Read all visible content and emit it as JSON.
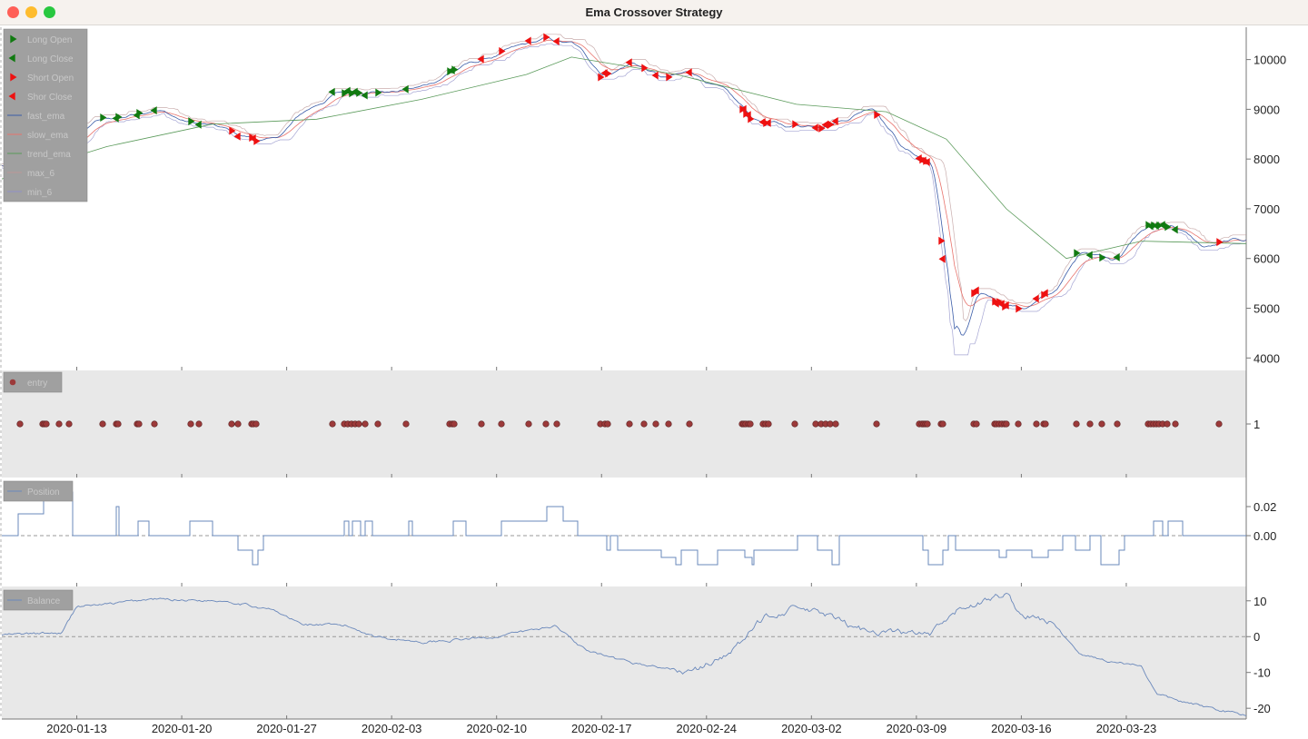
{
  "window": {
    "title": "Ema Crossover Strategy"
  },
  "colors": {
    "fast": "#3a5ca8",
    "slow": "#e8736c",
    "trend": "#5a9a5a",
    "long": "#117a11",
    "short": "#ee1111",
    "entry": "#9c3a3a",
    "line": "#6a88bb",
    "panel_bg": "#e8e8e8",
    "legend_bg": "#a0a0a0"
  },
  "chart_data": [
    {
      "type": "line",
      "title": "",
      "legend": {
        "placement": "top-left",
        "entries": [
          "Long Open",
          "Long Close",
          "Short Open",
          "Shor Close",
          "fast_ema",
          "slow_ema",
          "trend_ema",
          "max_6",
          "min_6"
        ]
      },
      "ylim": [
        3750,
        10650
      ],
      "y_ticks": [
        {
          "value": 4000,
          "label": "4000"
        },
        {
          "value": 5000,
          "label": "5000"
        },
        {
          "value": 6000,
          "label": "6000"
        },
        {
          "value": 7000,
          "label": "7000"
        },
        {
          "value": 8000,
          "label": "8000"
        },
        {
          "value": 9000,
          "label": "9000"
        },
        {
          "value": 10000,
          "label": "10000"
        }
      ],
      "x_ticks": [
        "2020-01-13",
        "2020-01-20",
        "2020-01-27",
        "2020-02-03",
        "2020-02-10",
        "2020-02-17",
        "2020-02-24",
        "2020-03-02",
        "2020-03-09",
        "2020-03-16",
        "2020-03-23"
      ],
      "x_range": [
        "2020-01-08",
        "2020-03-31"
      ],
      "price_anchors": {
        "x": [
          "2020-01-08",
          "2020-01-10",
          "2020-01-12",
          "2020-01-14",
          "2020-01-16",
          "2020-01-18",
          "2020-01-20",
          "2020-01-22",
          "2020-01-24",
          "2020-01-26",
          "2020-01-28",
          "2020-01-30",
          "2020-02-01",
          "2020-02-03",
          "2020-02-05",
          "2020-02-07",
          "2020-02-09",
          "2020-02-11",
          "2020-02-13",
          "2020-02-15",
          "2020-02-17",
          "2020-02-19",
          "2020-02-21",
          "2020-02-23",
          "2020-02-25",
          "2020-02-27",
          "2020-02-29",
          "2020-03-02",
          "2020-03-04",
          "2020-03-06",
          "2020-03-08",
          "2020-03-10",
          "2020-03-11",
          "2020-03-12",
          "2020-03-13",
          "2020-03-14",
          "2020-03-16",
          "2020-03-18",
          "2020-03-20",
          "2020-03-22",
          "2020-03-24",
          "2020-03-26",
          "2020-03-28",
          "2020-03-31"
        ],
        "y": [
          7850,
          7900,
          8150,
          8750,
          8850,
          9050,
          8750,
          8650,
          8450,
          8350,
          8950,
          9300,
          9400,
          9350,
          9450,
          9800,
          10000,
          10200,
          10400,
          10300,
          9700,
          9950,
          9600,
          9750,
          9350,
          8800,
          8650,
          8700,
          8800,
          9100,
          8200,
          7900,
          5500,
          4300,
          5300,
          5200,
          5000,
          5300,
          6200,
          6000,
          6600,
          6700,
          6200,
          6400
        ]
      },
      "trend_anchors": {
        "x": [
          "2020-01-08",
          "2020-01-15",
          "2020-01-22",
          "2020-01-29",
          "2020-02-05",
          "2020-02-12",
          "2020-02-15",
          "2020-02-22",
          "2020-03-01",
          "2020-03-07",
          "2020-03-11",
          "2020-03-15",
          "2020-03-19",
          "2020-03-24",
          "2020-03-31"
        ],
        "y": [
          7600,
          8250,
          8700,
          8800,
          9200,
          9700,
          10050,
          9700,
          9100,
          8950,
          8400,
          7000,
          6000,
          6350,
          6300
        ]
      }
    },
    {
      "type": "scatter",
      "legend": {
        "entries": [
          "entry"
        ]
      },
      "y_ticks": [
        {
          "value": 1,
          "label": "1"
        }
      ],
      "ylim": [
        0,
        2
      ],
      "marker_px_x": [
        22,
        47,
        49,
        51,
        65,
        76,
        113,
        128,
        130,
        151,
        153,
        170,
        210,
        219,
        255,
        262,
        277,
        279,
        282,
        366,
        379,
        383,
        387,
        391,
        395,
        402,
        416,
        447,
        495,
        498,
        500,
        530,
        552,
        582,
        601,
        613,
        661,
        666,
        669,
        693,
        709,
        722,
        736,
        759,
        817,
        819,
        821,
        824,
        826,
        840,
        843,
        846,
        875,
        898,
        904,
        909,
        914,
        920,
        965,
        1012,
        1015,
        1017,
        1019,
        1021,
        1036,
        1038,
        1072,
        1075,
        1095,
        1097,
        1100,
        1103,
        1106,
        1108,
        1121,
        1141,
        1149,
        1151,
        1185,
        1200,
        1213,
        1230,
        1264,
        1267,
        1270,
        1273,
        1276,
        1280,
        1285,
        1294,
        1342
      ]
    },
    {
      "type": "line",
      "legend": {
        "entries": [
          "Position"
        ]
      },
      "ylim": [
        -0.035,
        0.04
      ],
      "y_ticks": [
        {
          "value": 0.0,
          "label": "0.00"
        },
        {
          "value": 0.02,
          "label": "0.02"
        }
      ]
    },
    {
      "type": "line",
      "legend": {
        "entries": [
          "Balance"
        ]
      },
      "ylim": [
        -23,
        14
      ],
      "y_ticks": [
        {
          "value": -20,
          "label": "-20"
        },
        {
          "value": -10,
          "label": "-10"
        },
        {
          "value": 0,
          "label": "0"
        },
        {
          "value": 10,
          "label": "10"
        }
      ],
      "anchors": {
        "x": [
          "2020-01-08",
          "2020-01-12",
          "2020-01-13",
          "2020-01-15",
          "2020-01-18",
          "2020-01-23",
          "2020-01-26",
          "2020-01-28",
          "2020-01-31",
          "2020-02-02",
          "2020-02-05",
          "2020-02-07",
          "2020-02-10",
          "2020-02-14",
          "2020-02-16",
          "2020-02-18",
          "2020-02-20",
          "2020-02-23",
          "2020-02-24",
          "2020-02-26",
          "2020-02-28",
          "2020-03-01",
          "2020-03-03",
          "2020-03-05",
          "2020-03-08",
          "2020-03-10",
          "2020-03-12",
          "2020-03-14",
          "2020-03-15",
          "2020-03-16",
          "2020-03-18",
          "2020-03-20",
          "2020-03-22",
          "2020-03-24",
          "2020-03-25",
          "2020-03-27",
          "2020-03-31"
        ],
        "y": [
          0.5,
          1,
          8.5,
          9,
          10.5,
          10,
          7.5,
          3.5,
          3,
          0,
          -1.5,
          -1,
          0,
          3,
          -4,
          -6.5,
          -8,
          -10,
          -8,
          -3,
          6,
          8,
          6,
          2,
          1,
          0.5,
          8,
          10.5,
          12,
          6,
          4,
          -5,
          -7,
          -8,
          -16,
          -18.5,
          -22
        ]
      }
    }
  ]
}
